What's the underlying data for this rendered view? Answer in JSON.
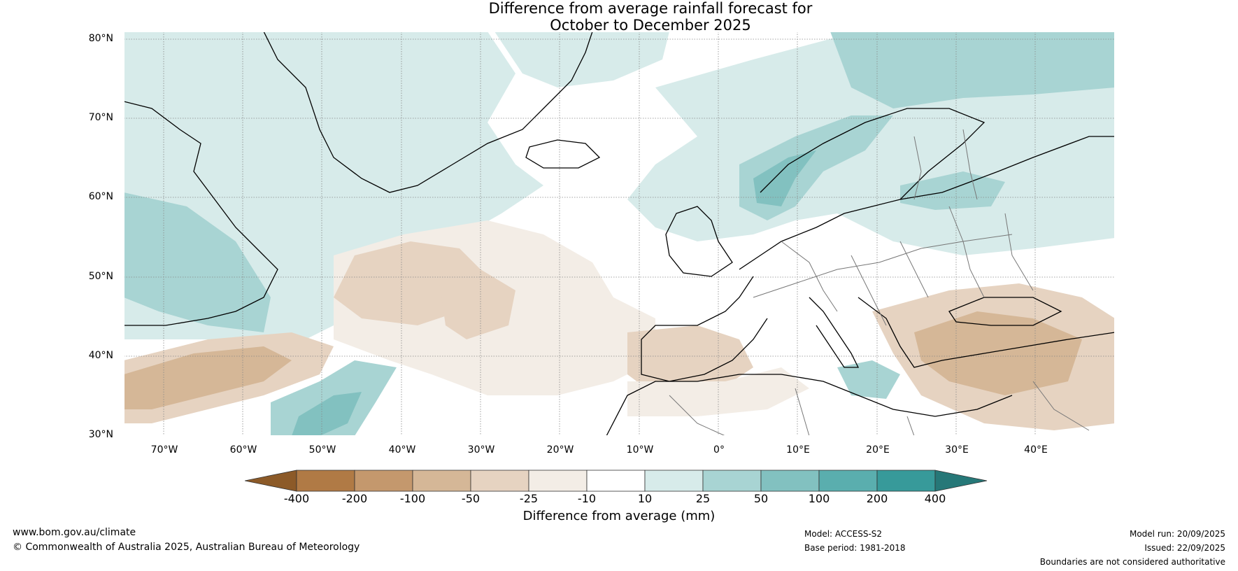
{
  "title": {
    "line1": "Difference from average rainfall forecast for",
    "line2": "October to December 2025"
  },
  "map": {
    "lat_labels": [
      "80°N",
      "70°N",
      "60°N",
      "50°N",
      "40°N",
      "30°N"
    ],
    "lon_labels": [
      "70°W",
      "60°W",
      "50°W",
      "40°W",
      "30°W",
      "20°W",
      "10°W",
      "0°",
      "10°E",
      "20°E",
      "30°E",
      "40°E"
    ],
    "extent": {
      "lon_min": -75,
      "lon_max": 50,
      "lat_min": 30,
      "lat_max": 81
    },
    "regions": [
      {
        "name": "northwest-atlantic",
        "category": "10 to 25",
        "color": "#d7ebea"
      },
      {
        "name": "labrador-coast",
        "category": "25 to 50",
        "color": "#a8d4d3"
      },
      {
        "name": "norwegian-coast",
        "category": "50 to 100",
        "color": "#82c1c0"
      },
      {
        "name": "scandinavia-arctic",
        "category": "25 to 50",
        "color": "#a8d4d3"
      },
      {
        "name": "central-atlantic",
        "category": "-50 to -25",
        "color": "#e6d3c1"
      },
      {
        "name": "western-atlantic-south",
        "category": "-100 to -50",
        "color": "#d5b797"
      },
      {
        "name": "iberia",
        "category": "-50 to -25",
        "color": "#e6d3c1"
      },
      {
        "name": "turkey-middle-east",
        "category": "-100 to -50",
        "color": "#d5b797"
      },
      {
        "name": "ionian-sea",
        "category": "25 to 50",
        "color": "#a8d4d3"
      }
    ]
  },
  "colorbar": {
    "title": "Difference from average (mm)",
    "labels": [
      "-400",
      "-200",
      "-100",
      "-50",
      "-25",
      "-10",
      "10",
      "25",
      "50",
      "100",
      "200",
      "400"
    ],
    "colors": [
      "#8c5a28",
      "#b07a45",
      "#c4986d",
      "#d5b797",
      "#e6d3c1",
      "#f3ede6",
      "#ffffff",
      "#d7ebea",
      "#a8d4d3",
      "#82c1c0",
      "#5aaeae",
      "#379a9a",
      "#267878"
    ]
  },
  "footer": {
    "url": "www.bom.gov.au/climate",
    "copyright": "© Commonwealth of Australia 2025, Australian Bureau of Meteorology",
    "model": "Model: ACCESS-S2",
    "base_period": "Base period: 1981-2018",
    "model_run": "Model run: 20/09/2025",
    "issued": "Issued: 22/09/2025",
    "disclaimer": "Boundaries are not considered authoritative"
  }
}
